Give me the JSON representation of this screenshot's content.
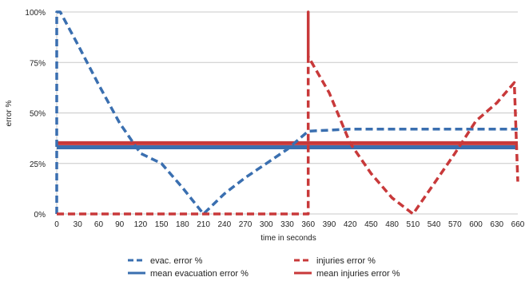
{
  "chart_data": {
    "type": "line",
    "xlabel": "time in seconds",
    "ylabel": "error %",
    "xlim": [
      0,
      660
    ],
    "ylim": [
      0,
      100
    ],
    "x_ticks": [
      0,
      30,
      60,
      90,
      120,
      150,
      180,
      210,
      240,
      270,
      300,
      330,
      360,
      390,
      420,
      450,
      480,
      510,
      540,
      570,
      600,
      630,
      660
    ],
    "y_ticks": [
      {
        "value": 0,
        "label": "0%"
      },
      {
        "value": 25,
        "label": "25%"
      },
      {
        "value": 50,
        "label": "50%"
      },
      {
        "value": 75,
        "label": "75%"
      },
      {
        "value": 100,
        "label": "100%"
      }
    ],
    "grid": "horizontal",
    "legend_position": "bottom",
    "series": [
      {
        "name": "evac. error %",
        "color": "#3a6fb0",
        "style": "dashed",
        "points": [
          [
            0,
            0
          ],
          [
            0,
            100
          ],
          [
            5,
            100
          ],
          [
            30,
            84
          ],
          [
            60,
            64
          ],
          [
            90,
            45
          ],
          [
            120,
            30
          ],
          [
            150,
            25
          ],
          [
            180,
            13
          ],
          [
            210,
            0
          ],
          [
            240,
            10
          ],
          [
            270,
            18
          ],
          [
            300,
            25
          ],
          [
            330,
            32
          ],
          [
            360,
            41
          ],
          [
            420,
            42
          ],
          [
            480,
            42
          ],
          [
            540,
            42
          ],
          [
            600,
            42
          ],
          [
            660,
            42
          ]
        ]
      },
      {
        "name": "mean evacuation error %",
        "color": "#3a6fb0",
        "style": "solid",
        "points": [
          [
            0,
            33
          ],
          [
            660,
            33
          ]
        ]
      },
      {
        "name": "injuries error %",
        "color": "#c8393a",
        "style": "dashed",
        "points": [
          [
            0,
            0
          ],
          [
            360,
            0
          ],
          [
            360,
            100
          ],
          [
            360,
            78
          ],
          [
            390,
            60
          ],
          [
            420,
            35
          ],
          [
            450,
            20
          ],
          [
            480,
            8
          ],
          [
            510,
            0
          ],
          [
            540,
            15
          ],
          [
            570,
            30
          ],
          [
            600,
            46
          ],
          [
            630,
            55
          ],
          [
            655,
            65
          ],
          [
            660,
            16
          ]
        ]
      },
      {
        "name": "mean injuries error %",
        "color": "#c8393a",
        "style": "solid",
        "points": [
          [
            0,
            35
          ],
          [
            660,
            35
          ]
        ]
      }
    ]
  }
}
